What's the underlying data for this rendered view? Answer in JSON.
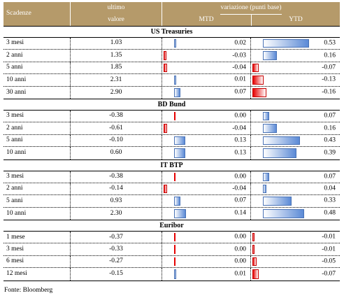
{
  "header": {
    "col_scadenze": "Scadenze",
    "col_value_line1": "ultimo",
    "col_value_line2": "valore",
    "col_variation": "variazione (punti base)",
    "col_mtd": "MTD",
    "col_ytd": "YTD"
  },
  "bar_colors": {
    "positive": "#5b8ad6",
    "negative": "#e60000"
  },
  "bar_max_abs": 0.55,
  "sections": [
    {
      "title": "US Treasuries",
      "rows": [
        {
          "label": "3 mesi",
          "value": "1.03",
          "mtd": "0.02",
          "ytd": "0.53"
        },
        {
          "label": "2 anni",
          "value": "1.35",
          "mtd": "-0.03",
          "ytd": "0.16"
        },
        {
          "label": "5 anni",
          "value": "1.85",
          "mtd": "-0.04",
          "ytd": "-0.07"
        },
        {
          "label": "10 anni",
          "value": "2.31",
          "mtd": "0.01",
          "ytd": "-0.13"
        },
        {
          "label": "30 anni",
          "value": "2.90",
          "mtd": "0.07",
          "ytd": "-0.16"
        }
      ]
    },
    {
      "title": "BD Bund",
      "rows": [
        {
          "label": "3 mesi",
          "value": "-0.38",
          "mtd": "0.00",
          "ytd": "0.07"
        },
        {
          "label": "2 anni",
          "value": "-0.61",
          "mtd": "-0.04",
          "ytd": "0.16"
        },
        {
          "label": "5 anni",
          "value": "-0.10",
          "mtd": "0.13",
          "ytd": "0.43"
        },
        {
          "label": "10 anni",
          "value": "0.60",
          "mtd": "0.13",
          "ytd": "0.39"
        }
      ]
    },
    {
      "title": "IT BTP",
      "rows": [
        {
          "label": "3 mesi",
          "value": "-0.38",
          "mtd": "0.00",
          "ytd": "0.07"
        },
        {
          "label": "2 anni",
          "value": "-0.14",
          "mtd": "-0.04",
          "ytd": "0.04"
        },
        {
          "label": "5 anni",
          "value": "0.93",
          "mtd": "0.07",
          "ytd": "0.33"
        },
        {
          "label": "10 anni",
          "value": "2.30",
          "mtd": "0.14",
          "ytd": "0.48"
        }
      ]
    },
    {
      "title": "Euribor",
      "rows": [
        {
          "label": "1 mese",
          "value": "-0.37",
          "mtd": "0.00",
          "ytd": "-0.01"
        },
        {
          "label": "3 mesi",
          "value": "-0.33",
          "mtd": "0.00",
          "ytd": "-0.01"
        },
        {
          "label": "6 mesi",
          "value": "-0.27",
          "mtd": "0.00",
          "ytd": "-0.05"
        },
        {
          "label": "12 mesi",
          "value": "-0.15",
          "mtd": "0.01",
          "ytd": "-0.07"
        }
      ]
    }
  ],
  "footer": "Fonte: Bloomberg"
}
